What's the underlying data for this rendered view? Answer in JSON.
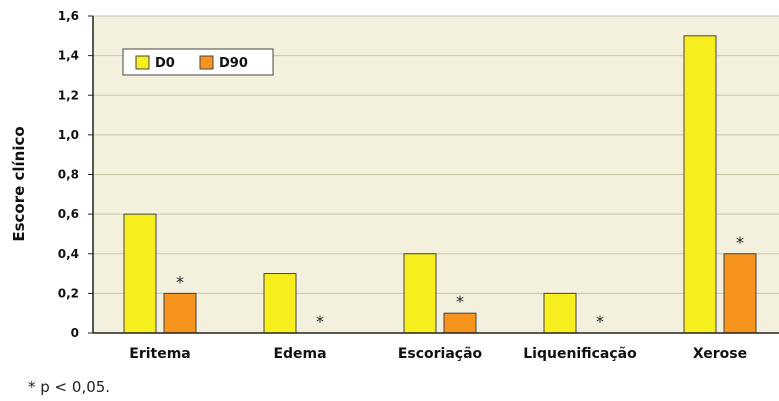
{
  "chart_data": {
    "type": "bar",
    "ylabel": "Escore clínico",
    "ylim": [
      0,
      1.6
    ],
    "yticks": [
      "0",
      "0,2",
      "0,4",
      "0,6",
      "0,8",
      "1,0",
      "1,2",
      "1,4",
      "1,6"
    ],
    "grid": true,
    "legend_position": "top-left",
    "categories": [
      "Eritema",
      "Edema",
      "Escoriação",
      "Liquenificação",
      "Xerose"
    ],
    "series": [
      {
        "name": "D0",
        "color": "#f7ee1e",
        "values": [
          0.6,
          0.3,
          0.4,
          0.2,
          1.5
        ]
      },
      {
        "name": "D90",
        "color": "#f7941e",
        "values": [
          0.2,
          0.0,
          0.1,
          0.0,
          0.4
        ]
      }
    ],
    "significance_marker": "*",
    "significant": [
      true,
      true,
      true,
      true,
      true
    ],
    "footnote": "*  p < 0,05.",
    "colors": {
      "plot_background": "#f3f0de",
      "gridline": "#c9c2a4",
      "bar_outline": "#444444"
    }
  }
}
